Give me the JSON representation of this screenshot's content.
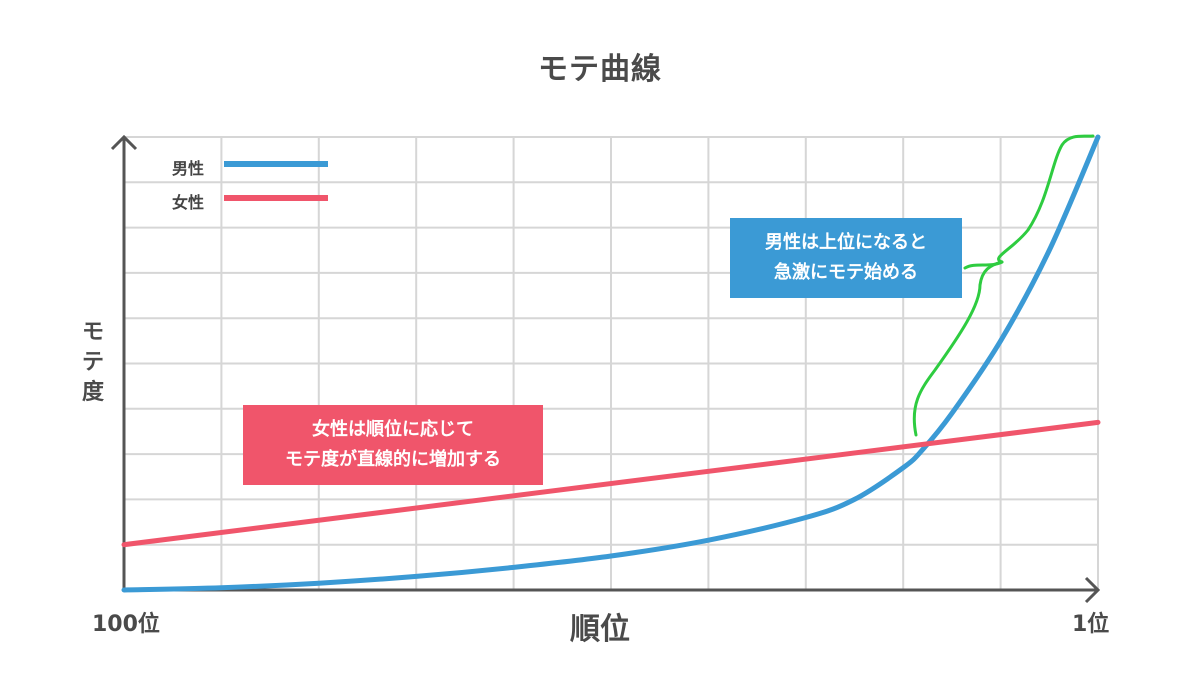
{
  "chart_data": {
    "type": "line",
    "title": "モテ曲線",
    "xlabel": "順位",
    "ylabel": "モテ度",
    "x_tick_labels": {
      "left": "100位",
      "right": "1位"
    },
    "grid": true,
    "legend_position": "top-left",
    "series": [
      {
        "name": "男性",
        "color": "#3b9ad5",
        "x": [
          0,
          10,
          20,
          30,
          40,
          50,
          60,
          70,
          75,
          80,
          82,
          85,
          90,
          95,
          100
        ],
        "y": [
          0,
          0.5,
          1.5,
          3,
          5,
          7.5,
          11,
          16,
          20,
          27,
          31,
          39,
          55,
          75,
          100
        ]
      },
      {
        "name": "女性",
        "color": "#f0556b",
        "x": [
          0,
          100
        ],
        "y": [
          10,
          37
        ]
      }
    ],
    "annotations": [
      {
        "text_lines": [
          "女性は順位に応じて",
          "モテ度が直線的に増加する"
        ],
        "color": "#f0556b"
      },
      {
        "text_lines": [
          "男性は上位になると",
          "急激にモテ始める"
        ],
        "color": "#3b9ad5"
      }
    ],
    "bracket_color": "#2ecc40",
    "axis_color": "#555555",
    "grid_color": "#d6d6d6"
  }
}
